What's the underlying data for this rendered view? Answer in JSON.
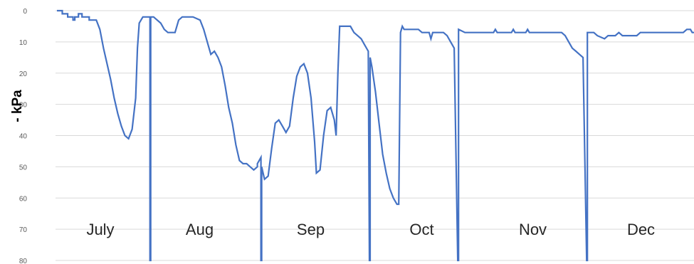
{
  "chart_data": {
    "type": "line",
    "title": "",
    "xlabel": "",
    "ylabel": "- kPa",
    "y_inverted": true,
    "ylim": [
      0,
      80
    ],
    "y_ticks": [
      "0",
      "10",
      "20",
      "30",
      "40",
      "50",
      "60",
      "70",
      "80"
    ],
    "grid": true,
    "legend": "none",
    "line_color": "#4472c4",
    "grid_color": "#d9d9d9",
    "months": [
      "July",
      "Aug",
      "Sep",
      "Oct",
      "Nov",
      "Dec"
    ],
    "month_divider_values": [
      80,
      80,
      80,
      80,
      80
    ],
    "x_unit": "day",
    "series": [
      {
        "points": [
          [
            0,
            0
          ],
          [
            1.5,
            0
          ],
          [
            1.5,
            1
          ],
          [
            3,
            1
          ],
          [
            3,
            2
          ],
          [
            4.5,
            2
          ],
          [
            4.5,
            3
          ],
          [
            5,
            3
          ],
          [
            5,
            2
          ],
          [
            6,
            2
          ],
          [
            6,
            1
          ],
          [
            7,
            1
          ],
          [
            7,
            2
          ],
          [
            9,
            2
          ],
          [
            9,
            3
          ],
          [
            11,
            3
          ],
          [
            12,
            6
          ],
          [
            13,
            12
          ],
          [
            14,
            17
          ],
          [
            15,
            22
          ],
          [
            16,
            28
          ],
          [
            17,
            33
          ],
          [
            18,
            37
          ],
          [
            19,
            40
          ],
          [
            20,
            41
          ],
          [
            21,
            38
          ],
          [
            22,
            28
          ],
          [
            22.5,
            12
          ],
          [
            23,
            4
          ],
          [
            24,
            2
          ],
          [
            25,
            2
          ],
          [
            26,
            2
          ],
          [
            26,
            80
          ],
          [
            26.2,
            80
          ],
          [
            26.2,
            2
          ],
          [
            27,
            2
          ],
          [
            28,
            3
          ],
          [
            29,
            4
          ],
          [
            30,
            6
          ],
          [
            31,
            7
          ],
          [
            33,
            7
          ],
          [
            34,
            3
          ],
          [
            35,
            2
          ],
          [
            38,
            2
          ],
          [
            40,
            3
          ],
          [
            41,
            6
          ],
          [
            42,
            10
          ],
          [
            43,
            14
          ],
          [
            44,
            13
          ],
          [
            45,
            15
          ],
          [
            46,
            18
          ],
          [
            47,
            24
          ],
          [
            48,
            31
          ],
          [
            49,
            36
          ],
          [
            50,
            43
          ],
          [
            51,
            48
          ],
          [
            52,
            49
          ],
          [
            53,
            49
          ],
          [
            54,
            50
          ],
          [
            55,
            51
          ],
          [
            56,
            50
          ],
          [
            56,
            49
          ],
          [
            57,
            47
          ],
          [
            57,
            80
          ],
          [
            57.2,
            80
          ],
          [
            57.2,
            50
          ],
          [
            58,
            54
          ],
          [
            59,
            53
          ],
          [
            60,
            44
          ],
          [
            61,
            36
          ],
          [
            62,
            35
          ],
          [
            63,
            37
          ],
          [
            64,
            39
          ],
          [
            65,
            37
          ],
          [
            66,
            28
          ],
          [
            67,
            21
          ],
          [
            68,
            18
          ],
          [
            69,
            17
          ],
          [
            70,
            20
          ],
          [
            71,
            28
          ],
          [
            72,
            42
          ],
          [
            72.5,
            52
          ],
          [
            73.5,
            51
          ],
          [
            74.5,
            40
          ],
          [
            75.5,
            32
          ],
          [
            76.5,
            31
          ],
          [
            77.5,
            35
          ],
          [
            78,
            40
          ],
          [
            78.5,
            20
          ],
          [
            79,
            5
          ],
          [
            81,
            5
          ],
          [
            82,
            5
          ],
          [
            83,
            7
          ],
          [
            84,
            8
          ],
          [
            85,
            9
          ],
          [
            86,
            11
          ],
          [
            87,
            13
          ],
          [
            87.3,
            80
          ],
          [
            87.5,
            80
          ],
          [
            87.5,
            15
          ],
          [
            88,
            18
          ],
          [
            89,
            26
          ],
          [
            90,
            36
          ],
          [
            91,
            46
          ],
          [
            92,
            52
          ],
          [
            93,
            57
          ],
          [
            94,
            60
          ],
          [
            95,
            62
          ],
          [
            95.5,
            62
          ],
          [
            96,
            7
          ],
          [
            96.5,
            5
          ],
          [
            97,
            6
          ],
          [
            101,
            6
          ],
          [
            102,
            7
          ],
          [
            104,
            7
          ],
          [
            104.5,
            9
          ],
          [
            105,
            7
          ],
          [
            108,
            7
          ],
          [
            109,
            8
          ],
          [
            110,
            10
          ],
          [
            111,
            12
          ],
          [
            112,
            80
          ],
          [
            112.2,
            80
          ],
          [
            112.2,
            6
          ],
          [
            114,
            7
          ],
          [
            122,
            7
          ],
          [
            122.5,
            6
          ],
          [
            123,
            7
          ],
          [
            127,
            7
          ],
          [
            127.5,
            6
          ],
          [
            128,
            7
          ],
          [
            131,
            7
          ],
          [
            131.5,
            6
          ],
          [
            132,
            7
          ],
          [
            141,
            7
          ],
          [
            142,
            8
          ],
          [
            143,
            10
          ],
          [
            144,
            12
          ],
          [
            145,
            13
          ],
          [
            146,
            14
          ],
          [
            147,
            15
          ],
          [
            148,
            80
          ],
          [
            148.2,
            80
          ],
          [
            148.2,
            7
          ],
          [
            150,
            7
          ],
          [
            151,
            8
          ],
          [
            153,
            9
          ],
          [
            154,
            8
          ],
          [
            156,
            8
          ],
          [
            157,
            7
          ],
          [
            158,
            8
          ],
          [
            162,
            8
          ],
          [
            163,
            7
          ],
          [
            175,
            7
          ],
          [
            176,
            6
          ],
          [
            177,
            6
          ],
          [
            177.5,
            7
          ],
          [
            178,
            7
          ]
        ]
      }
    ]
  }
}
